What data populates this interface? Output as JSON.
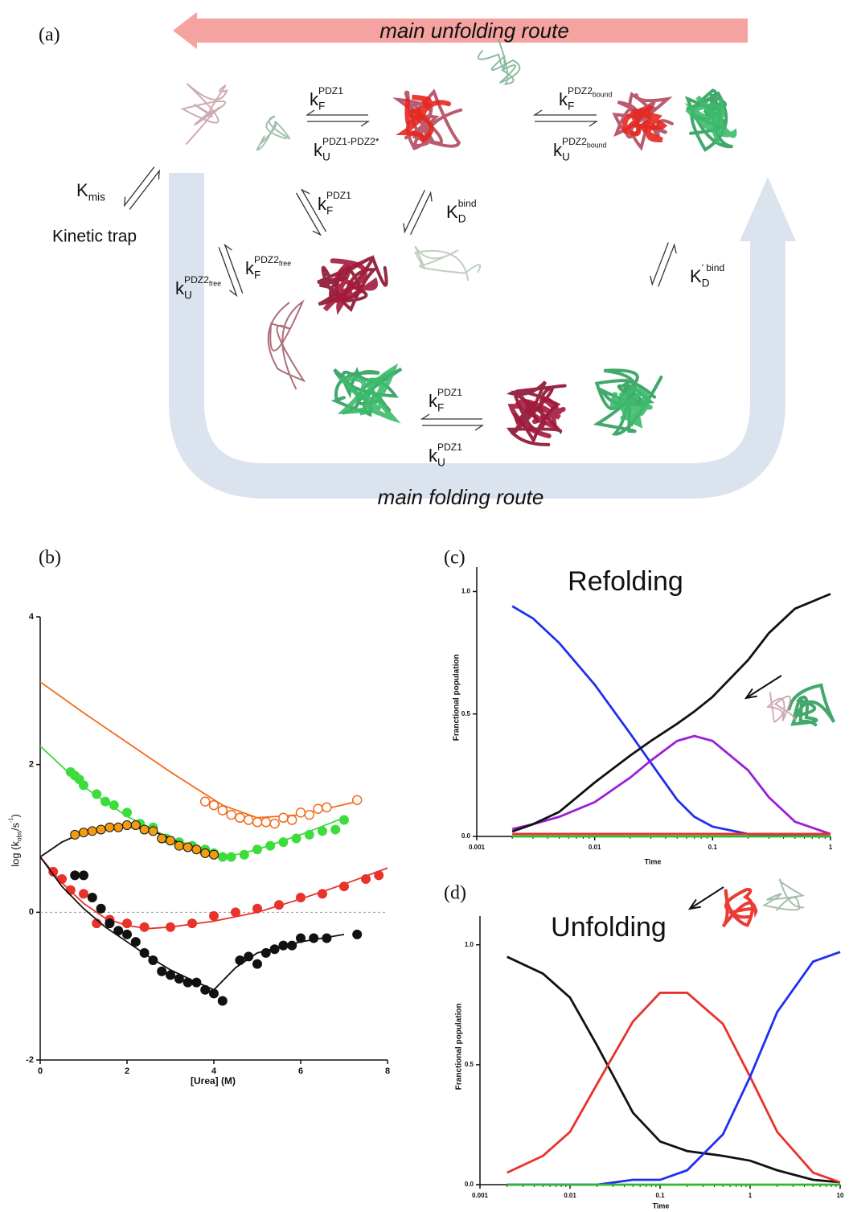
{
  "panel_a": {
    "panel_label": "(a)",
    "unfolding_route": "main unfolding route",
    "folding_route": "main folding route",
    "kinetic_trap": "Kinetic trap",
    "rates": {
      "kf_top": [
        {
          "t": "k"
        },
        {
          "t": "F",
          "pos": "sub"
        },
        {
          "t": "PDZ1",
          "pos": "sup"
        }
      ],
      "ku_top": [
        {
          "t": "k"
        },
        {
          "t": "U",
          "pos": "sub"
        },
        {
          "t": "PDZ1-PDZ2*",
          "pos": "sup"
        }
      ],
      "kf_bound": [
        {
          "t": "k"
        },
        {
          "t": "F",
          "pos": "sub"
        },
        {
          "t": "PDZ2",
          "pos": "sup"
        },
        {
          "t": "bound",
          "pos": "supsub"
        }
      ],
      "ku_bound": [
        {
          "t": "k"
        },
        {
          "t": "U",
          "pos": "sub"
        },
        {
          "t": "PDZ2",
          "pos": "sup"
        },
        {
          "t": "bound",
          "pos": "supsub"
        }
      ],
      "k_mis": [
        {
          "t": "K"
        },
        {
          "t": "mis",
          "pos": "sub"
        }
      ],
      "kf_mid": [
        {
          "t": "k"
        },
        {
          "t": "F",
          "pos": "sub"
        },
        {
          "t": "PDZ1",
          "pos": "sup"
        }
      ],
      "kd_bind": [
        {
          "t": "K"
        },
        {
          "t": "D",
          "pos": "sub"
        },
        {
          "t": "bind",
          "pos": "sup"
        }
      ],
      "ku_free": [
        {
          "t": "k"
        },
        {
          "t": "U",
          "pos": "sub"
        },
        {
          "t": "PDZ2",
          "pos": "sup"
        },
        {
          "t": "free",
          "pos": "supsub"
        }
      ],
      "kf_free": [
        {
          "t": "k"
        },
        {
          "t": "F",
          "pos": "sub"
        },
        {
          "t": "PDZ2",
          "pos": "sup"
        },
        {
          "t": "free",
          "pos": "supsub"
        }
      ],
      "kd_bind2": [
        {
          "t": "K"
        },
        {
          "t": "D",
          "pos": "sub"
        },
        {
          "t": "' bind",
          "pos": "sup"
        }
      ],
      "kf_bottom": [
        {
          "t": "k"
        },
        {
          "t": "F",
          "pos": "sub"
        },
        {
          "t": "PDZ1",
          "pos": "sup"
        }
      ],
      "ku_bottom": [
        {
          "t": "k"
        },
        {
          "t": "U",
          "pos": "sub"
        },
        {
          "t": "PDZ1",
          "pos": "sup"
        }
      ]
    }
  },
  "chart_data": [
    {
      "type": "scatter",
      "panel_label": "(b)",
      "x_label": "[Urea] (M)",
      "y_label": [
        {
          "t": "log (k"
        },
        {
          "t": "obs",
          "pos": "sub"
        },
        {
          "t": "/s"
        },
        {
          "t": "-1",
          "pos": "sup"
        },
        {
          "t": ")"
        }
      ],
      "xlim": [
        0,
        8
      ],
      "ylim": [
        -2,
        4
      ],
      "xticks": [
        0,
        2,
        4,
        6,
        8
      ],
      "yticks": [
        -2,
        0,
        2,
        4
      ],
      "reference_line": 0,
      "series": [
        {
          "style": "line",
          "color": "#f26a1b",
          "x": [
            0,
            1,
            2,
            3,
            4.2,
            5,
            6,
            7.3
          ],
          "values": [
            3.12,
            2.7,
            2.3,
            1.9,
            1.45,
            1.28,
            1.32,
            1.5
          ]
        },
        {
          "style": "open-circle",
          "color": "#f26a1b",
          "x": [
            3.8,
            4.0,
            4.2,
            4.4,
            4.6,
            4.8,
            5.0,
            5.2,
            5.4,
            5.6,
            5.8,
            6.0,
            6.2,
            6.4,
            6.6,
            7.3
          ],
          "values": [
            1.5,
            1.45,
            1.38,
            1.32,
            1.28,
            1.25,
            1.22,
            1.22,
            1.2,
            1.28,
            1.25,
            1.35,
            1.32,
            1.4,
            1.42,
            1.52
          ]
        },
        {
          "style": "line",
          "color": "#3ddc3d",
          "x": [
            0,
            1,
            2,
            3,
            4.3,
            5,
            6,
            7
          ],
          "values": [
            2.25,
            1.7,
            1.3,
            1.0,
            0.75,
            0.85,
            1.05,
            1.28
          ]
        },
        {
          "style": "filled-circle",
          "color": "#3ddc3d",
          "x": [
            0.7,
            0.8,
            0.9,
            1.0,
            1.3,
            1.5,
            1.7,
            2.0,
            2.3,
            2.6,
            2.9,
            3.2,
            3.5,
            3.8,
            4.0,
            4.2,
            4.4,
            4.7,
            5.0,
            5.3,
            5.6,
            5.9,
            6.2,
            6.5,
            6.8,
            7.0
          ],
          "values": [
            1.9,
            1.85,
            1.8,
            1.72,
            1.6,
            1.5,
            1.45,
            1.35,
            1.2,
            1.15,
            1.0,
            0.95,
            0.9,
            0.85,
            0.8,
            0.75,
            0.75,
            0.78,
            0.85,
            0.9,
            0.95,
            1.0,
            1.05,
            1.1,
            1.12,
            1.25
          ]
        },
        {
          "style": "line",
          "color": "#111111",
          "x": [
            0,
            0.5,
            1,
            1.5,
            2,
            2.5,
            3,
            3.5,
            4
          ],
          "values": [
            0.75,
            0.95,
            1.08,
            1.14,
            1.16,
            1.12,
            1.0,
            0.85,
            0.75
          ]
        },
        {
          "style": "edged-circle",
          "color": "#f39c12",
          "x": [
            0.8,
            1.0,
            1.2,
            1.4,
            1.6,
            1.8,
            2.0,
            2.2,
            2.4,
            2.6,
            2.8,
            3.0,
            3.2,
            3.4,
            3.6,
            3.8,
            4.0
          ],
          "values": [
            1.05,
            1.08,
            1.1,
            1.12,
            1.15,
            1.15,
            1.18,
            1.18,
            1.12,
            1.1,
            1.0,
            0.97,
            0.9,
            0.88,
            0.85,
            0.8,
            0.78
          ]
        },
        {
          "style": "line",
          "color": "#e8322a",
          "x": [
            0,
            0.5,
            1,
            1.5,
            2,
            2.5,
            3,
            4,
            5,
            6,
            7,
            8
          ],
          "values": [
            0.75,
            0.4,
            0.12,
            -0.08,
            -0.18,
            -0.22,
            -0.2,
            -0.12,
            0,
            0.18,
            0.38,
            0.6
          ]
        },
        {
          "style": "filled-circle",
          "color": "#e8322a",
          "x": [
            0.3,
            0.5,
            0.7,
            1.0,
            1.3,
            1.6,
            2.0,
            2.4,
            3.0,
            3.5,
            4.0,
            4.5,
            5.0,
            5.5,
            6.0,
            6.5,
            7.0,
            7.5,
            7.8
          ],
          "values": [
            0.55,
            0.45,
            0.3,
            0.25,
            -0.15,
            -0.1,
            -0.15,
            -0.2,
            -0.2,
            -0.15,
            -0.05,
            0,
            0.05,
            0.1,
            0.2,
            0.25,
            0.35,
            0.45,
            0.5
          ]
        },
        {
          "style": "line",
          "color": "#111111",
          "x": [
            0,
            0.5,
            1,
            1.5,
            2,
            2.5,
            3,
            3.5,
            4,
            4.5,
            5,
            6,
            7
          ],
          "values": [
            0.75,
            0.35,
            0.05,
            -0.2,
            -0.4,
            -0.6,
            -0.78,
            -0.92,
            -1.05,
            -0.75,
            -0.55,
            -0.4,
            -0.3
          ]
        },
        {
          "style": "filled-circle",
          "color": "#111111",
          "x": [
            0.8,
            1.0,
            1.2,
            1.4,
            1.6,
            1.8,
            2.0,
            2.2,
            2.4,
            2.6,
            2.8,
            3.0,
            3.2,
            3.4,
            3.6,
            3.8,
            4.0,
            4.2,
            4.6,
            4.8,
            5.0,
            5.2,
            5.4,
            5.6,
            5.8,
            6.0,
            6.3,
            6.6,
            7.3
          ],
          "values": [
            0.5,
            0.5,
            0.2,
            0.05,
            -0.15,
            -0.25,
            -0.3,
            -0.4,
            -0.55,
            -0.65,
            -0.8,
            -0.85,
            -0.9,
            -0.95,
            -0.95,
            -1.05,
            -1.1,
            -1.2,
            -0.65,
            -0.6,
            -0.7,
            -0.55,
            -0.5,
            -0.45,
            -0.45,
            -0.35,
            -0.35,
            -0.35,
            -0.3
          ]
        }
      ]
    },
    {
      "type": "line",
      "panel_label": "(c)",
      "title": "Refolding",
      "x_label": "Time",
      "y_label": [
        {
          "t": "Franctional population"
        }
      ],
      "x_scale": "log",
      "xlim": [
        0.001,
        1
      ],
      "ylim": [
        0,
        1.1
      ],
      "xticks": [
        0.001,
        0.01,
        0.1,
        1
      ],
      "yticks": [
        {
          "value": 0,
          "label": "0.0"
        },
        0.5,
        {
          "value": 1,
          "label": "1.0"
        }
      ],
      "x": [
        0.002,
        0.003,
        0.005,
        0.01,
        0.02,
        0.03,
        0.05,
        0.07,
        0.1,
        0.2,
        0.3,
        0.5,
        1
      ],
      "series": [
        {
          "color": "#1f2ff0",
          "values": [
            0.94,
            0.89,
            0.79,
            0.62,
            0.42,
            0.3,
            0.15,
            0.08,
            0.04,
            0.01,
            0.005,
            0.002,
            0
          ]
        },
        {
          "color": "#9b1fd6",
          "values": [
            0.03,
            0.05,
            0.08,
            0.14,
            0.24,
            0.31,
            0.39,
            0.41,
            0.39,
            0.27,
            0.16,
            0.06,
            0.01
          ]
        },
        {
          "color": "#111111",
          "values": [
            0.02,
            0.05,
            0.1,
            0.22,
            0.33,
            0.39,
            0.46,
            0.51,
            0.57,
            0.72,
            0.83,
            0.93,
            0.99
          ]
        },
        {
          "color": "#e8322a",
          "values": [
            0.01,
            0.01,
            0.01,
            0.01,
            0.01,
            0.01,
            0.01,
            0.01,
            0.01,
            0.01,
            0.01,
            0.01,
            0.01
          ]
        },
        {
          "color": "#2fb82f",
          "values": [
            0,
            0,
            0,
            0,
            0,
            0,
            0,
            0,
            0,
            0,
            0,
            0,
            0
          ]
        }
      ]
    },
    {
      "type": "line",
      "panel_label": "(d)",
      "title": "Unfolding",
      "x_label": "Time",
      "y_label": [
        {
          "t": "Franctional population"
        }
      ],
      "x_scale": "log",
      "xlim": [
        0.001,
        10
      ],
      "ylim": [
        0,
        1.12
      ],
      "xticks": [
        0.001,
        0.01,
        0.1,
        1,
        10
      ],
      "yticks": [
        {
          "value": 0,
          "label": "0.0"
        },
        0.5,
        {
          "value": 1,
          "label": "1.0"
        }
      ],
      "x": [
        0.002,
        0.005,
        0.01,
        0.02,
        0.05,
        0.1,
        0.2,
        0.5,
        1,
        2,
        5,
        10
      ],
      "series": [
        {
          "color": "#111111",
          "values": [
            0.95,
            0.88,
            0.78,
            0.58,
            0.3,
            0.18,
            0.14,
            0.12,
            0.1,
            0.06,
            0.02,
            0.01
          ]
        },
        {
          "color": "#e8322a",
          "values": [
            0.05,
            0.12,
            0.22,
            0.42,
            0.68,
            0.8,
            0.8,
            0.67,
            0.45,
            0.22,
            0.05,
            0.01
          ]
        },
        {
          "color": "#1f2ff0",
          "values": [
            0,
            0,
            0,
            0,
            0.02,
            0.02,
            0.06,
            0.21,
            0.45,
            0.72,
            0.93,
            0.97
          ]
        },
        {
          "color": "#2fb82f",
          "values": [
            0,
            0,
            0,
            0,
            0,
            0,
            0,
            0,
            0,
            0,
            0,
            0
          ]
        }
      ]
    }
  ]
}
